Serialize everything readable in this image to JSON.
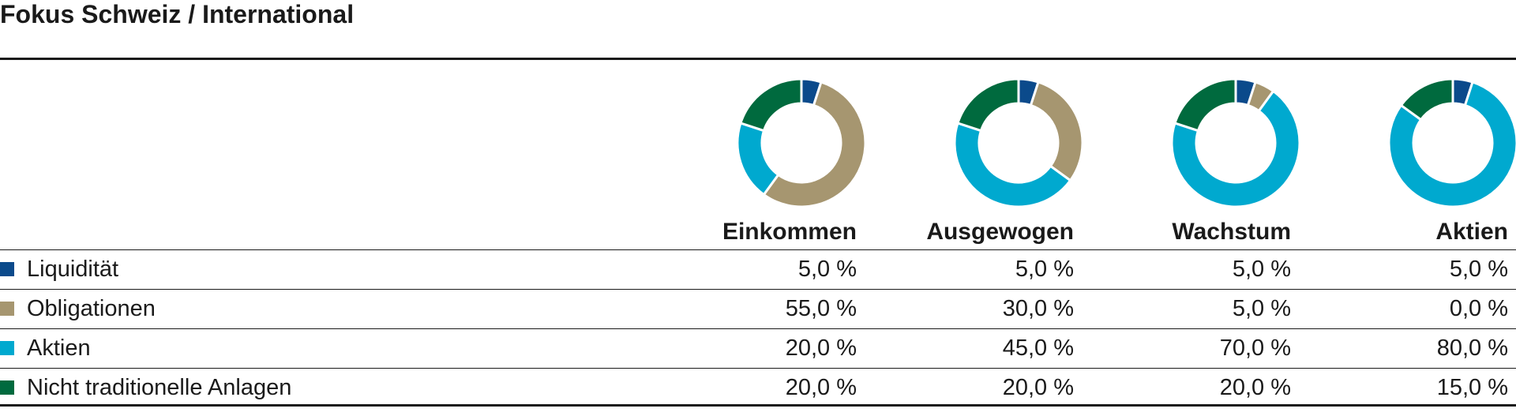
{
  "title": "Fokus Schweiz / International",
  "chart_data": {
    "type": "pie",
    "categories": [
      "Liquidität",
      "Obligationen",
      "Aktien",
      "Nicht traditionelle Anlagen"
    ],
    "colors": [
      "#0b4a8b",
      "#a69670",
      "#00a9cf",
      "#006a3e"
    ],
    "series": [
      {
        "name": "Einkommen",
        "values": [
          5.0,
          55.0,
          20.0,
          20.0
        ],
        "labels": [
          "5,0 %",
          "55,0 %",
          "20,0 %",
          "20,0 %"
        ]
      },
      {
        "name": "Ausgewogen",
        "values": [
          5.0,
          30.0,
          45.0,
          20.0
        ],
        "labels": [
          "5,0 %",
          "30,0 %",
          "45,0 %",
          "20,0 %"
        ]
      },
      {
        "name": "Wachstum",
        "values": [
          5.0,
          5.0,
          70.0,
          20.0
        ],
        "labels": [
          "5,0 %",
          "5,0 %",
          "70,0 %",
          "20,0 %"
        ]
      },
      {
        "name": "Aktien",
        "values": [
          5.0,
          0.0,
          80.0,
          15.0
        ],
        "labels": [
          "5,0 %",
          "0,0 %",
          "80,0 %",
          "15,0 %"
        ]
      }
    ]
  }
}
